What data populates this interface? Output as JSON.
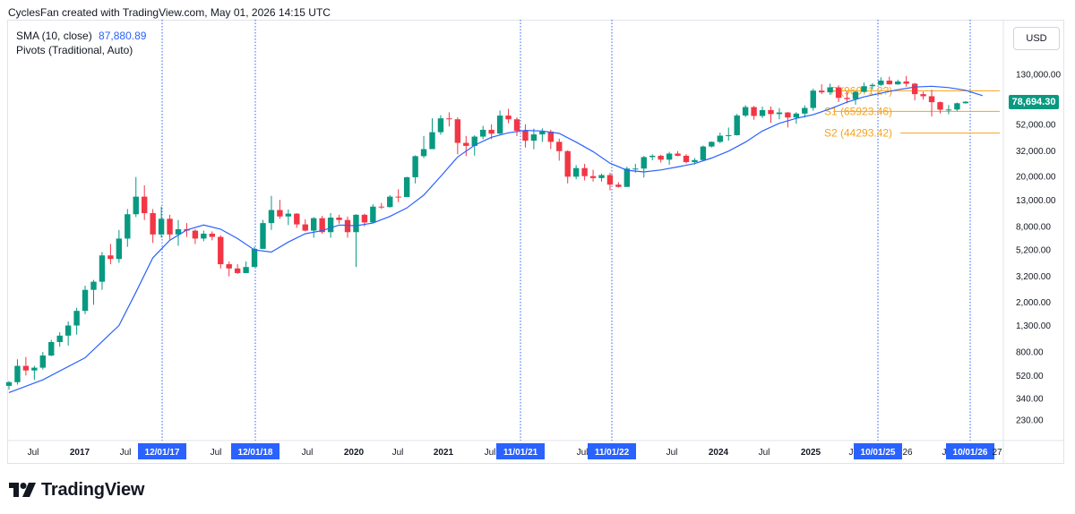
{
  "header": {
    "attribution": "CyclesFan created with TradingView.com, May 01, 2026 14:15 UTC"
  },
  "legend": {
    "sma_label": "SMA (10, close)",
    "sma_value": "87,880.89",
    "pivots_label": "Pivots (Traditional, Auto)"
  },
  "toolbar": {
    "currency": "USD"
  },
  "last_price": "78,694.30",
  "brand": {
    "name": "TradingView"
  },
  "colors": {
    "up": "#089981",
    "down": "#f23645",
    "sma": "#2962ff",
    "pivot": "#f7a21b",
    "cycle_line": "#2962ff"
  },
  "chart_data": {
    "type": "candlestick",
    "scale": "log",
    "y_ticks": [
      "230.00",
      "340.00",
      "520.00",
      "800.00",
      "1,300.00",
      "2,000.00",
      "3,200.00",
      "5,200.00",
      "8,000.00",
      "13,000.00",
      "20,000.00",
      "32,000.00",
      "52,000.00",
      "130,000.00"
    ],
    "x_labels": [
      "Jul",
      "2017",
      "Jul",
      "Jul",
      "Jul",
      "2020",
      "Jul",
      "2021",
      "Jul",
      "Jul",
      "Jul",
      "2024",
      "Jul",
      "2025",
      "J",
      "26",
      "J",
      "27"
    ],
    "cycle_dates": [
      "12/01/17",
      "12/01/18",
      "11/01/21",
      "11/01/22",
      "10/01/25",
      "10/01/26"
    ],
    "pivots": [
      {
        "name": "P",
        "label": "P (96071.2?)",
        "value": 96071
      },
      {
        "name": "S1",
        "label": "S1 (65923.46)",
        "value": 65923.46
      },
      {
        "name": "S2",
        "label": "S2 (44293.42)",
        "value": 44293.42
      }
    ],
    "last_price": 78694.3,
    "candles": [
      [
        430,
        460,
        400,
        470
      ],
      [
        460,
        620,
        440,
        700
      ],
      [
        620,
        570,
        520,
        730
      ],
      [
        570,
        600,
        480,
        620
      ],
      [
        600,
        750,
        580,
        800
      ],
      [
        750,
        960,
        740,
        1000
      ],
      [
        960,
        1080,
        880,
        1150
      ],
      [
        1080,
        1300,
        900,
        1400
      ],
      [
        1300,
        1700,
        1100,
        1800
      ],
      [
        1700,
        2500,
        1600,
        2700
      ],
      [
        2500,
        2900,
        1900,
        3000
      ],
      [
        2900,
        4700,
        2500,
        5000
      ],
      [
        4700,
        4400,
        4000,
        5800
      ],
      [
        4400,
        6400,
        4100,
        7500
      ],
      [
        6400,
        10000,
        5500,
        11000
      ],
      [
        10000,
        13800,
        9500,
        19800
      ],
      [
        13800,
        10200,
        9000,
        17000
      ],
      [
        10200,
        6900,
        5900,
        11000
      ],
      [
        6900,
        9200,
        6500,
        11500
      ],
      [
        9200,
        6900,
        6300,
        9900
      ],
      [
        6900,
        7600,
        5600,
        9000
      ],
      [
        7600,
        7400,
        6600,
        8500
      ],
      [
        7400,
        6400,
        5800,
        7600
      ],
      [
        6400,
        7000,
        6100,
        7400
      ],
      [
        7000,
        6600,
        6200,
        7300
      ],
      [
        6600,
        4000,
        3700,
        6800
      ],
      [
        4000,
        3700,
        3200,
        4200
      ],
      [
        3700,
        3400,
        3350,
        4000
      ],
      [
        3400,
        3800,
        3400,
        4200
      ],
      [
        3800,
        5300,
        3800,
        5500
      ],
      [
        5300,
        8500,
        5300,
        9000
      ],
      [
        8500,
        10800,
        7500,
        14000
      ],
      [
        10800,
        9600,
        9200,
        13000
      ],
      [
        9600,
        10100,
        8200,
        10900
      ],
      [
        10100,
        8300,
        7800,
        10200
      ],
      [
        8300,
        7400,
        7300,
        9100
      ],
      [
        7400,
        9300,
        6500,
        9500
      ],
      [
        9300,
        7200,
        7000,
        9700
      ],
      [
        7200,
        9400,
        6500,
        10200
      ],
      [
        9400,
        9000,
        8400,
        9900
      ],
      [
        9000,
        7200,
        6500,
        9600
      ],
      [
        7200,
        9900,
        3800,
        10000
      ],
      [
        9900,
        8600,
        8000,
        10100
      ],
      [
        8600,
        11500,
        8700,
        12000
      ],
      [
        11500,
        11400,
        11000,
        12300
      ],
      [
        11400,
        13800,
        11300,
        14200
      ],
      [
        13800,
        13700,
        12500,
        15800
      ],
      [
        13700,
        19700,
        13700,
        19900
      ],
      [
        19700,
        29000,
        17600,
        29400
      ],
      [
        29000,
        33000,
        28000,
        42000
      ],
      [
        33000,
        45000,
        33000,
        58000
      ],
      [
        45000,
        58000,
        43000,
        61500
      ],
      [
        58000,
        57000,
        50000,
        64800
      ],
      [
        57000,
        37000,
        30000,
        59000
      ],
      [
        37000,
        35000,
        29000,
        42000
      ],
      [
        35000,
        41500,
        29300,
        42500
      ],
      [
        41500,
        47000,
        39500,
        50500
      ],
      [
        47000,
        43800,
        39600,
        52000
      ],
      [
        43800,
        61000,
        43000,
        66900
      ],
      [
        61000,
        57000,
        53000,
        69000
      ],
      [
        57000,
        46200,
        42000,
        59000
      ],
      [
        46200,
        38500,
        34000,
        52000
      ],
      [
        38500,
        43200,
        32900,
        48000
      ],
      [
        43200,
        45500,
        37600,
        48200
      ],
      [
        45500,
        37700,
        33000,
        47000
      ],
      [
        37700,
        31800,
        26700,
        40000
      ],
      [
        31800,
        19900,
        17600,
        32300
      ],
      [
        19900,
        23300,
        19000,
        24600
      ],
      [
        23300,
        20100,
        18600,
        25200
      ],
      [
        20100,
        19400,
        18200,
        22600
      ],
      [
        19400,
        20500,
        18200,
        21000
      ],
      [
        20500,
        17200,
        15500,
        21400
      ],
      [
        17200,
        16500,
        16300,
        18000
      ],
      [
        16500,
        23100,
        16500,
        23900
      ],
      [
        23100,
        23100,
        21400,
        25200
      ],
      [
        23100,
        28500,
        19600,
        29200
      ],
      [
        28500,
        29200,
        26900,
        30000
      ],
      [
        29200,
        27200,
        25800,
        29800
      ],
      [
        27200,
        30400,
        24800,
        31400
      ],
      [
        30400,
        29200,
        28900,
        31800
      ],
      [
        29200,
        26000,
        25400,
        30100
      ],
      [
        26000,
        27000,
        24900,
        28000
      ],
      [
        27000,
        34600,
        26600,
        35200
      ],
      [
        34600,
        37700,
        34000,
        38000
      ],
      [
        37700,
        42200,
        36800,
        44700
      ],
      [
        42200,
        42600,
        38500,
        49000
      ],
      [
        42600,
        61100,
        42300,
        63000
      ],
      [
        61100,
        71300,
        59300,
        73800
      ],
      [
        71300,
        60600,
        56500,
        72800
      ],
      [
        60600,
        67500,
        58400,
        71900
      ],
      [
        67500,
        62700,
        53500,
        72000
      ],
      [
        62700,
        64600,
        57000,
        70000
      ],
      [
        64600,
        58900,
        49000,
        65000
      ],
      [
        58900,
        63300,
        52500,
        65000
      ],
      [
        63300,
        70200,
        58900,
        73600
      ],
      [
        70200,
        96400,
        66800,
        99800
      ],
      [
        96400,
        93400,
        90700,
        108300
      ],
      [
        93400,
        102400,
        89300,
        109500
      ],
      [
        102400,
        84400,
        78200,
        106400
      ],
      [
        84400,
        82500,
        76600,
        95000
      ],
      [
        82500,
        94200,
        74500,
        95600
      ],
      [
        94200,
        104600,
        93400,
        111900
      ],
      [
        104600,
        107200,
        98200,
        110500
      ],
      [
        107200,
        115800,
        105000,
        123200
      ],
      [
        115800,
        108200,
        107400,
        124500
      ],
      [
        108200,
        114000,
        107300,
        117900
      ],
      [
        114000,
        109500,
        103500,
        126200
      ],
      [
        109500,
        90400,
        80600,
        111000
      ],
      [
        90400,
        87000,
        82000,
        94600
      ],
      [
        87000,
        78000,
        60000,
        97900
      ],
      [
        78000,
        68000,
        63500,
        79000
      ],
      [
        68000,
        68200,
        62500,
        74000
      ],
      [
        68200,
        76500,
        66000,
        77500
      ],
      [
        76500,
        78694,
        76000,
        79500
      ]
    ],
    "sma": [
      [
        0,
        380
      ],
      [
        4,
        480
      ],
      [
        9,
        720
      ],
      [
        13,
        1300
      ],
      [
        15,
        2400
      ],
      [
        17,
        4500
      ],
      [
        19,
        6200
      ],
      [
        21,
        7500
      ],
      [
        23,
        8200
      ],
      [
        25,
        7600
      ],
      [
        27,
        6400
      ],
      [
        29,
        5200
      ],
      [
        31,
        5000
      ],
      [
        33,
        6000
      ],
      [
        35,
        7000
      ],
      [
        37,
        7400
      ],
      [
        39,
        8200
      ],
      [
        41,
        8100
      ],
      [
        43,
        8500
      ],
      [
        45,
        9600
      ],
      [
        47,
        11200
      ],
      [
        49,
        14200
      ],
      [
        51,
        20000
      ],
      [
        53,
        28500
      ],
      [
        55,
        35500
      ],
      [
        57,
        41000
      ],
      [
        59,
        44500
      ],
      [
        61,
        46500
      ],
      [
        63,
        46000
      ],
      [
        65,
        44000
      ],
      [
        67,
        37500
      ],
      [
        69,
        31500
      ],
      [
        71,
        25500
      ],
      [
        73,
        22400
      ],
      [
        75,
        21700
      ],
      [
        77,
        22500
      ],
      [
        79,
        23800
      ],
      [
        81,
        25300
      ],
      [
        83,
        28000
      ],
      [
        85,
        31800
      ],
      [
        87,
        37500
      ],
      [
        89,
        46000
      ],
      [
        91,
        53000
      ],
      [
        93,
        58000
      ],
      [
        95,
        62000
      ],
      [
        97,
        69000
      ],
      [
        99,
        78000
      ],
      [
        101,
        86000
      ],
      [
        103,
        92000
      ],
      [
        105,
        98000
      ],
      [
        107,
        103000
      ],
      [
        109,
        104500
      ],
      [
        111,
        102000
      ],
      [
        113,
        97000
      ],
      [
        115,
        88000
      ]
    ]
  }
}
